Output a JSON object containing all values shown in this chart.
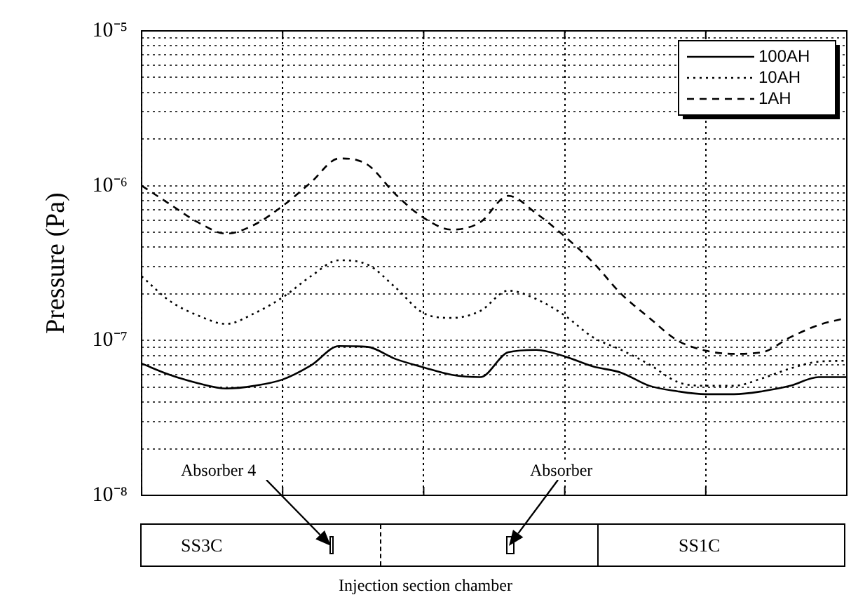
{
  "chart_data": {
    "type": "line",
    "ylabel": "Pressure (Pa)",
    "xlabel": "Injection section chamber",
    "log": "y",
    "ylim": [
      1e-08,
      1e-05
    ],
    "yticks": [
      {
        "value": 1e-08,
        "label": "10⁻⁸"
      },
      {
        "value": 2e-08,
        "label": null
      },
      {
        "value": 3e-08,
        "label": null
      },
      {
        "value": 4e-08,
        "label": null
      },
      {
        "value": 5e-08,
        "label": null
      },
      {
        "value": 6e-08,
        "label": null
      },
      {
        "value": 7e-08,
        "label": null
      },
      {
        "value": 8e-08,
        "label": null
      },
      {
        "value": 9e-08,
        "label": null
      },
      {
        "value": 1e-07,
        "label": "10⁻⁷"
      },
      {
        "value": 2e-07,
        "label": null
      },
      {
        "value": 3e-07,
        "label": null
      },
      {
        "value": 4e-07,
        "label": null
      },
      {
        "value": 5e-07,
        "label": null
      },
      {
        "value": 6e-07,
        "label": null
      },
      {
        "value": 7e-07,
        "label": null
      },
      {
        "value": 8e-07,
        "label": null
      },
      {
        "value": 9e-07,
        "label": null
      },
      {
        "value": 1e-06,
        "label": "10⁻⁶"
      },
      {
        "value": 2e-06,
        "label": null
      },
      {
        "value": 3e-06,
        "label": null
      },
      {
        "value": 4e-06,
        "label": null
      },
      {
        "value": 5e-06,
        "label": null
      },
      {
        "value": 6e-06,
        "label": null
      },
      {
        "value": 7e-06,
        "label": null
      },
      {
        "value": 8e-06,
        "label": null
      },
      {
        "value": 9e-06,
        "label": null
      },
      {
        "value": 1e-05,
        "label": "10⁻⁵"
      }
    ],
    "categories": [
      null,
      null,
      null,
      null,
      null,
      null,
      null,
      null,
      null,
      null,
      null,
      null,
      null,
      null,
      null,
      null,
      null,
      null,
      null,
      null,
      null,
      null,
      null,
      null,
      null,
      null
    ],
    "series": [
      {
        "name": "100AH",
        "color": "#000000",
        "line_style": "solid",
        "values": [
          7.1e-08,
          6e-08,
          5.3e-08,
          4.9e-08,
          5.1e-08,
          5.6e-08,
          6.9e-08,
          9.2e-08,
          9.1e-08,
          7.6e-08,
          6.7e-08,
          6e-08,
          5.8e-08,
          8.4e-08,
          8.7e-08,
          7.9e-08,
          6.8e-08,
          6.2e-08,
          5.1e-08,
          4.7e-08,
          4.5e-08,
          4.5e-08,
          4.7e-08,
          5.1e-08,
          5.8e-08,
          5.8e-08
        ]
      },
      {
        "name": "10AH",
        "color": "#000000",
        "line_style": "dotted",
        "values": [
          2.6e-07,
          1.8e-07,
          1.45e-07,
          1.28e-07,
          1.5e-07,
          1.9e-07,
          2.6e-07,
          3.3e-07,
          3.1e-07,
          2.2e-07,
          1.5e-07,
          1.4e-07,
          1.55e-07,
          2.1e-07,
          1.85e-07,
          1.45e-07,
          1.05e-07,
          8.7e-08,
          7e-08,
          5.4e-08,
          5.1e-08,
          5.1e-08,
          5.7e-08,
          6.6e-08,
          7.3e-08,
          7.4e-08
        ]
      },
      {
        "name": "1AH",
        "color": "#000000",
        "line_style": "dashed",
        "values": [
          1e-06,
          7.6e-07,
          5.8e-07,
          4.9e-07,
          5.6e-07,
          7.4e-07,
          1.05e-06,
          1.5e-06,
          1.37e-06,
          8.8e-07,
          6.2e-07,
          5.2e-07,
          5.8e-07,
          8.6e-07,
          6.6e-07,
          4.7e-07,
          3.2e-07,
          2e-07,
          1.4e-07,
          1e-07,
          8.6e-08,
          8.2e-08,
          8.4e-08,
          1.05e-07,
          1.26e-07,
          1.4e-07
        ]
      }
    ],
    "grid": true,
    "legend": "top right",
    "tick_labels": "y",
    "marker": "none",
    "annotations": [
      "Absorber 4",
      "Absorber",
      "SS3C",
      "SS1C"
    ]
  }
}
